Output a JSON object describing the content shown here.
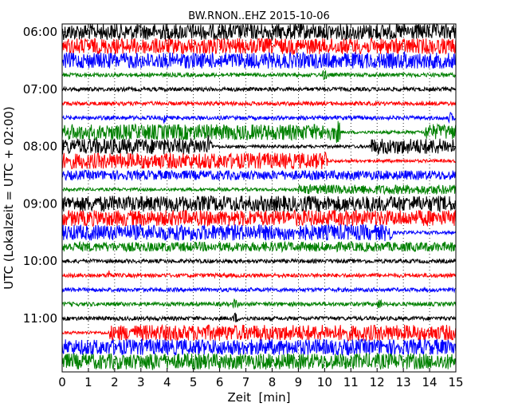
{
  "chart_data": {
    "type": "line",
    "title": "BW.RNON..EHZ 2015-10-06",
    "xlabel": "Zeit  [min]",
    "ylabel": "UTC (Lokalzeit = UTC + 02:00)",
    "xlim": [
      0,
      15
    ],
    "x_ticks": [
      "0",
      "1",
      "2",
      "3",
      "4",
      "5",
      "6",
      "7",
      "8",
      "9",
      "10",
      "11",
      "12",
      "13",
      "14",
      "15"
    ],
    "y_tick_labels": [
      "06:00",
      "07:00",
      "08:00",
      "09:00",
      "10:00",
      "11:00"
    ],
    "grid": {
      "x": true,
      "y": false,
      "style": "dotted"
    },
    "trace_colors": [
      "#000000",
      "#ff0000",
      "#0000ff",
      "#008000"
    ],
    "traces": [
      {
        "start": "06:00",
        "color": "black",
        "amplitude": "high",
        "events": []
      },
      {
        "start": "06:15",
        "color": "red",
        "amplitude": "high",
        "events": []
      },
      {
        "start": "06:30",
        "color": "blue",
        "amplitude": "high",
        "events": [
          {
            "minute": 13.1,
            "note": "burst, amplitude drops afterwards"
          }
        ]
      },
      {
        "start": "06:45",
        "color": "green",
        "amplitude": "low",
        "events": [
          {
            "minute": 10.0,
            "note": "spike"
          }
        ]
      },
      {
        "start": "07:00",
        "color": "black",
        "amplitude": "low",
        "events": []
      },
      {
        "start": "07:15",
        "color": "red",
        "amplitude": "low",
        "events": []
      },
      {
        "start": "07:30",
        "color": "blue",
        "amplitude": "low",
        "events": [
          {
            "minute": 3.9,
            "note": "spike"
          },
          {
            "minute": 14.8,
            "note": "burst"
          }
        ]
      },
      {
        "start": "07:45",
        "color": "green",
        "amplitude": "high",
        "segments": [
          [
            0,
            10.5
          ],
          [
            13.8,
            15
          ]
        ],
        "events": [
          {
            "minute": 10.5,
            "note": "spike"
          }
        ]
      },
      {
        "start": "08:00",
        "color": "black",
        "amplitude": "high",
        "segments": [
          [
            0,
            5.7
          ],
          [
            11.7,
            15
          ]
        ],
        "events": [
          {
            "minute": 5.6,
            "note": "spike"
          }
        ]
      },
      {
        "start": "08:15",
        "color": "red",
        "amplitude": "high",
        "segments": [
          [
            0,
            10.1
          ]
        ],
        "events": [
          {
            "minute": 10.0,
            "note": "spike"
          }
        ]
      },
      {
        "start": "08:30",
        "color": "blue",
        "amplitude": "medium",
        "events": []
      },
      {
        "start": "08:45",
        "color": "green",
        "amplitude": "medium",
        "segments": [
          [
            9.0,
            15
          ]
        ],
        "events": []
      },
      {
        "start": "09:00",
        "color": "black",
        "amplitude": "high",
        "events": []
      },
      {
        "start": "09:15",
        "color": "red",
        "amplitude": "high",
        "events": []
      },
      {
        "start": "09:30",
        "color": "blue",
        "amplitude": "high",
        "segments": [
          [
            0,
            12.6
          ]
        ],
        "events": [
          {
            "minute": 12.4,
            "note": "spike"
          }
        ]
      },
      {
        "start": "09:45",
        "color": "green",
        "amplitude": "medium",
        "events": []
      },
      {
        "start": "10:00",
        "color": "black",
        "amplitude": "low",
        "events": []
      },
      {
        "start": "10:15",
        "color": "red",
        "amplitude": "low",
        "events": [
          {
            "minute": 1.8,
            "note": "spike"
          }
        ]
      },
      {
        "start": "10:30",
        "color": "blue",
        "amplitude": "low",
        "events": []
      },
      {
        "start": "10:45",
        "color": "green",
        "amplitude": "low",
        "events": [
          {
            "minute": 6.6,
            "note": "spike"
          },
          {
            "minute": 12.1,
            "note": "spike"
          }
        ]
      },
      {
        "start": "11:00",
        "color": "black",
        "amplitude": "low",
        "events": [
          {
            "minute": 6.6,
            "note": "spike"
          }
        ]
      },
      {
        "start": "11:15",
        "color": "red",
        "amplitude": "high",
        "segments": [
          [
            1.8,
            15
          ]
        ],
        "events": []
      },
      {
        "start": "11:30",
        "color": "blue",
        "amplitude": "high",
        "events": []
      },
      {
        "start": "11:45",
        "color": "green",
        "amplitude": "high",
        "events": [
          {
            "minute": 3.4,
            "note": "spike"
          }
        ]
      }
    ]
  }
}
